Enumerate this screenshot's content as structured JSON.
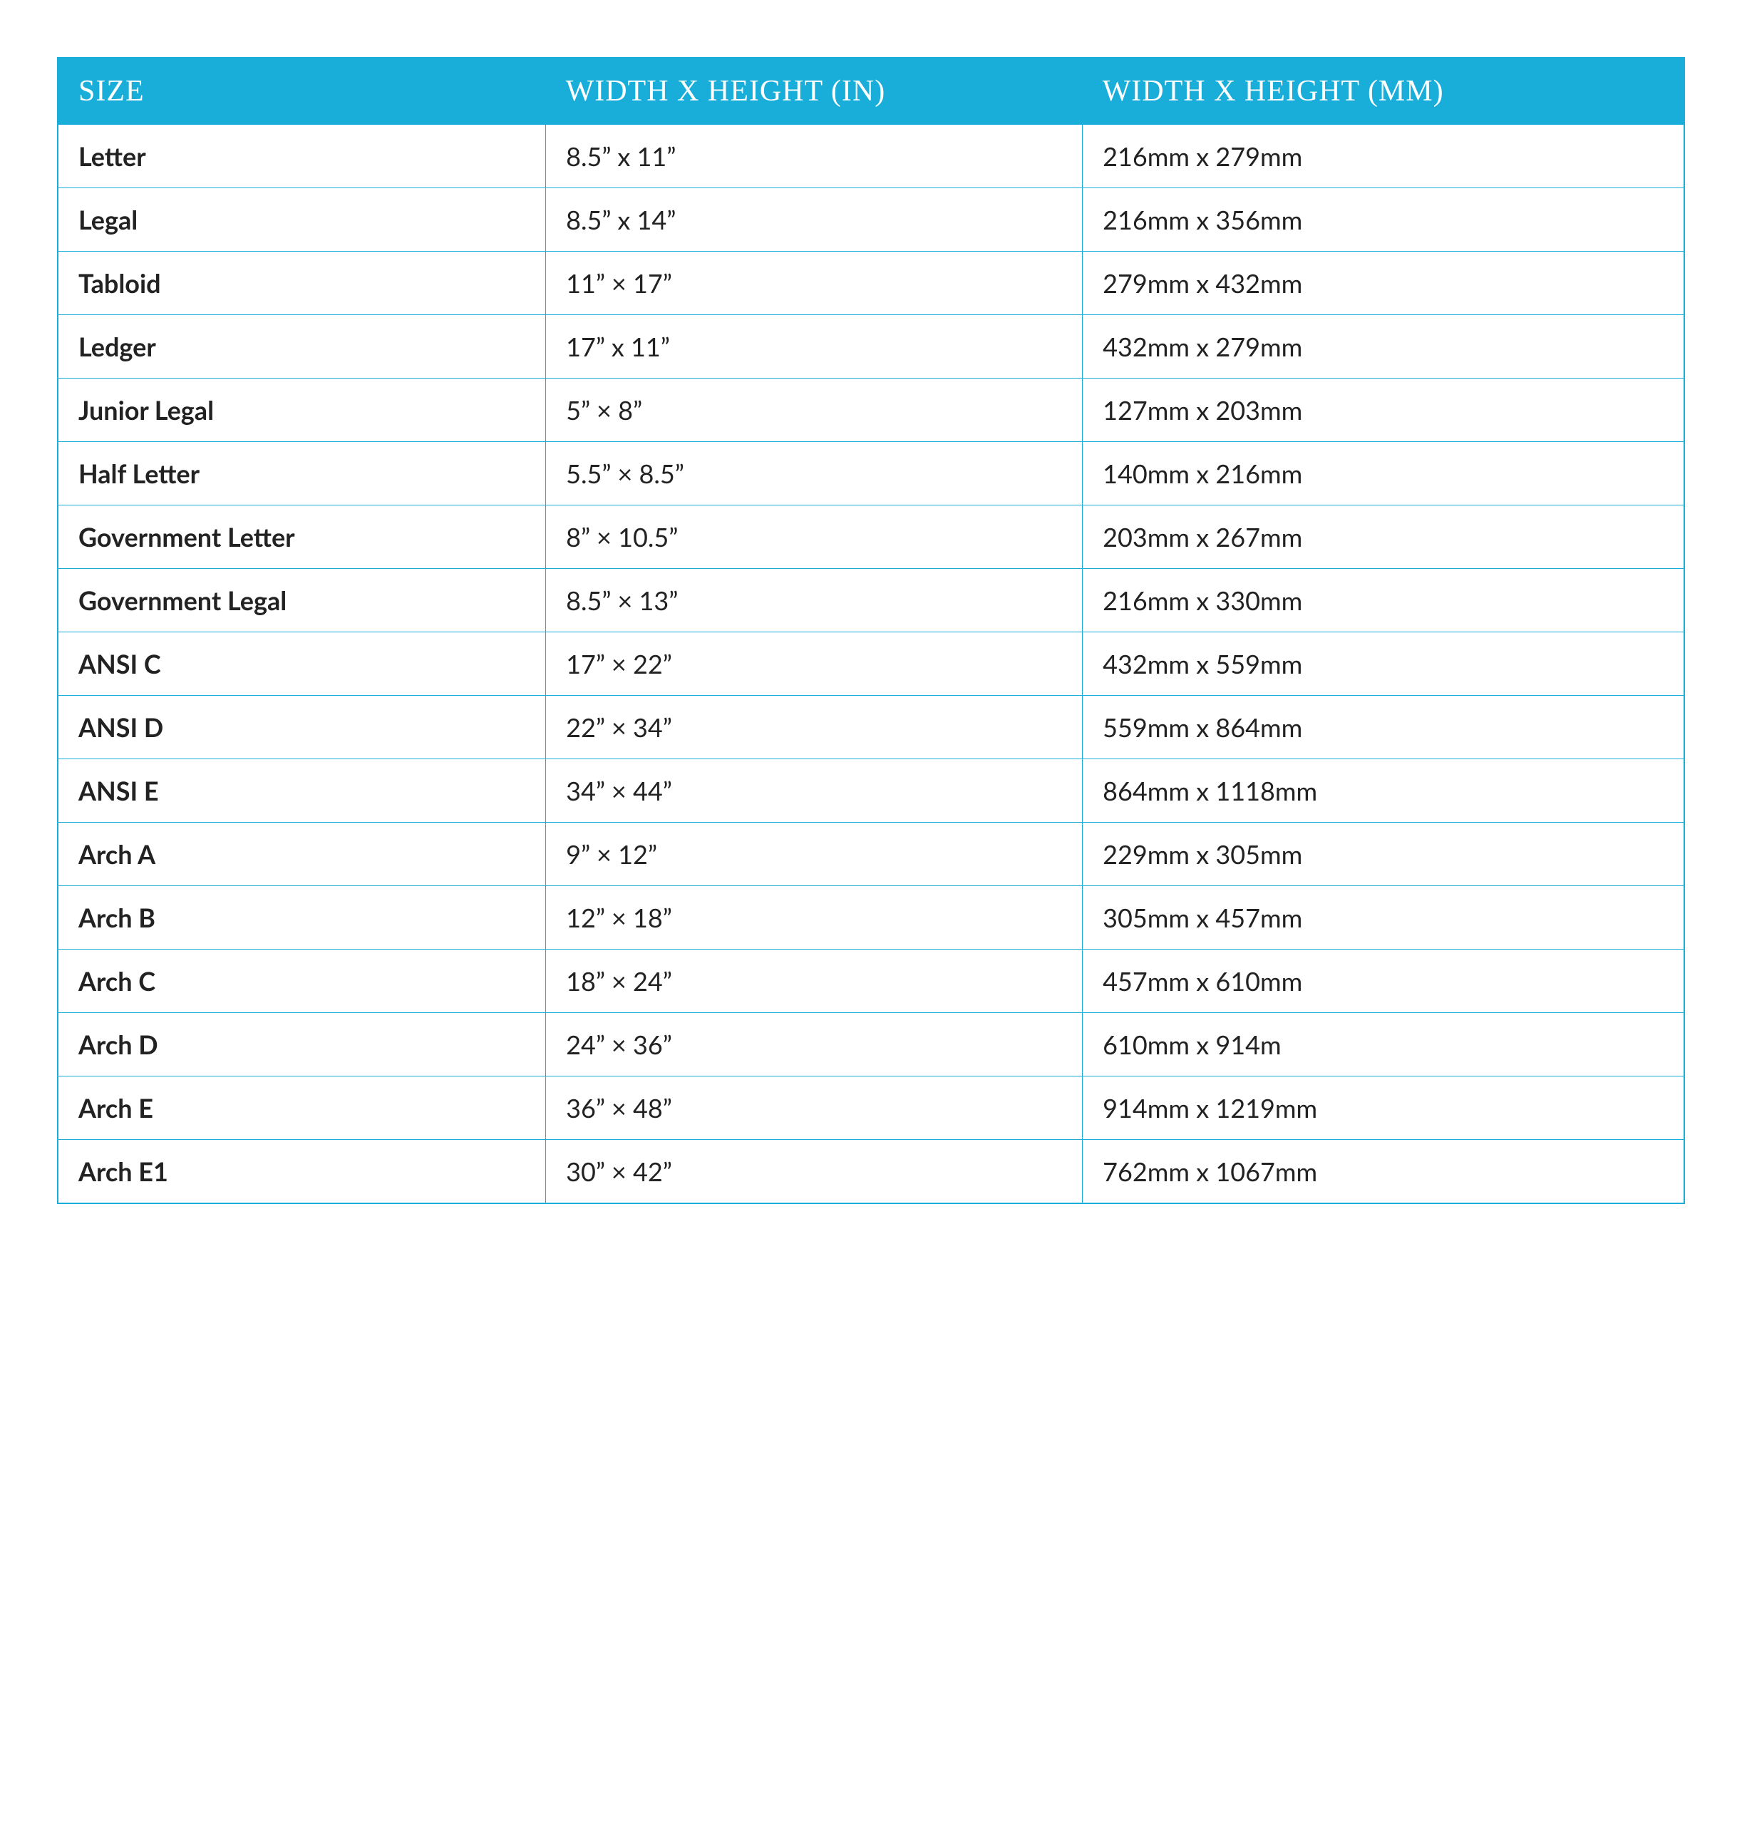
{
  "table": {
    "columns": [
      "Size",
      "Width x Height (in)",
      "Width x Height (mm)"
    ],
    "column_widths_pct": [
      30,
      33,
      37
    ],
    "header_bg_color": "#18aed9",
    "header_text_color": "#ffffff",
    "header_fontsize_pt": 32,
    "header_font_family": "cursive",
    "border_color": "#18aed9",
    "cell_bg_color": "#ffffff",
    "cell_text_color": "#222222",
    "cell_fontsize_pt": 27,
    "first_col_font_weight": 700,
    "rows": [
      {
        "size": "Letter",
        "inches": "8.5” x 11”",
        "mm": "216mm x 279mm"
      },
      {
        "size": "Legal",
        "inches": "8.5” x 14”",
        "mm": "216mm x 356mm"
      },
      {
        "size": "Tabloid",
        "inches": "11” × 17”",
        "mm": "279mm x 432mm"
      },
      {
        "size": "Ledger",
        "inches": "17” x 11”",
        "mm": "432mm x 279mm"
      },
      {
        "size": "Junior Legal",
        "inches": "5” × 8”",
        "mm": "127mm x 203mm"
      },
      {
        "size": "Half Letter",
        "inches": "5.5” × 8.5”",
        "mm": "140mm x 216mm"
      },
      {
        "size": "Government Letter",
        "inches": "8” × 10.5”",
        "mm": "203mm x 267mm"
      },
      {
        "size": "Government Legal",
        "inches": "8.5” × 13”",
        "mm": "216mm x 330mm"
      },
      {
        "size": "ANSI C",
        "inches": "17” × 22”",
        "mm": "432mm x 559mm"
      },
      {
        "size": "ANSI D",
        "inches": "22” × 34”",
        "mm": "559mm x 864mm"
      },
      {
        "size": "ANSI E",
        "inches": "34” × 44”",
        "mm": "864mm x 1118mm"
      },
      {
        "size": "Arch A",
        "inches": "9” × 12”",
        "mm": "229mm x 305mm"
      },
      {
        "size": "Arch B",
        "inches": "12” × 18”",
        "mm": "305mm x 457mm"
      },
      {
        "size": "Arch C",
        "inches": "18” × 24”",
        "mm": "457mm x 610mm"
      },
      {
        "size": "Arch D",
        "inches": "24” × 36”",
        "mm": "610mm x 914m"
      },
      {
        "size": "Arch E",
        "inches": "36” × 48”",
        "mm": "914mm x 1219mm"
      },
      {
        "size": "Arch E1",
        "inches": "30” × 42”",
        "mm": "762mm x 1067mm"
      }
    ]
  }
}
